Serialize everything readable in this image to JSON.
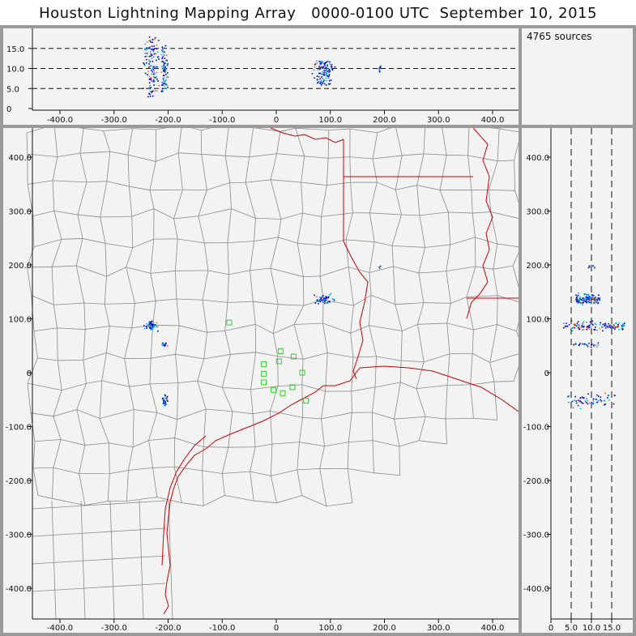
{
  "title": "Houston Lightning Mapping Array   0000-0100 UTC  September 10, 2015",
  "source_count": "4765 sources",
  "colors": {
    "background": "#f3f3f3",
    "frame": "#9a9a9a",
    "county_lines": "#8a8a8a",
    "state_and_coast_lines": "#cc0000",
    "stations": "#33cc33",
    "sources_low": "#0000cc",
    "sources_mid": "#00aadd",
    "sources_high": "#ff6600"
  },
  "top_panel": {
    "x_ticks": [
      "-400.0",
      "-300.0",
      "-200.0",
      "-100.0",
      "0",
      "100.0",
      "200.0",
      "300.0",
      "400.0"
    ],
    "y_ticks": [
      "0",
      "5.0",
      "10.0",
      "15.0"
    ]
  },
  "map_panel": {
    "x_ticks": [
      "-400.0",
      "-300.0",
      "-200.0",
      "-100.0",
      "0",
      "100.0",
      "200.0",
      "300.0",
      "400.0"
    ],
    "y_ticks": [
      "-400.0",
      "-300.0",
      "-200.0",
      "-100.0",
      "0",
      "100.0",
      "200.0",
      "300.0",
      "400.0"
    ]
  },
  "right_panel": {
    "x_ticks": [
      "0",
      "5.0",
      "10.0",
      "15.0"
    ],
    "y_ticks": [
      "-400.0",
      "-300.0",
      "-200.0",
      "-100.0",
      "0",
      "100.0",
      "200.0",
      "300.0",
      "400.0"
    ]
  }
}
